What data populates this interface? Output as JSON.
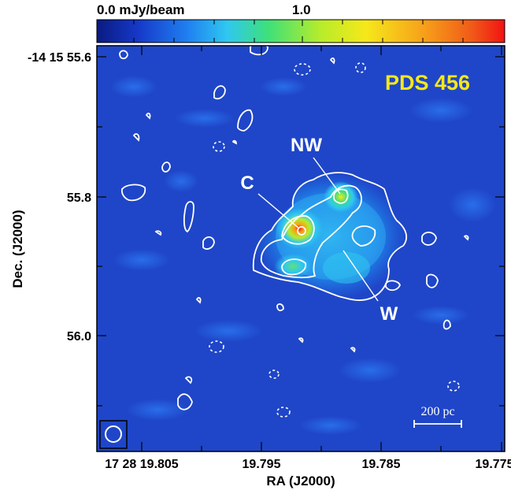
{
  "colorbar": {
    "label_low": "0.0 mJy/beam",
    "label_high": "1.0",
    "colors": [
      "#0a1a80",
      "#1638c8",
      "#1f7ef0",
      "#2fc8f0",
      "#3ee07a",
      "#b8ec2a",
      "#f6e81a",
      "#f7a11a",
      "#f05a18",
      "#f21212"
    ]
  },
  "image": {
    "background_color": "#1f46c8",
    "contour_color": "#ffffff"
  },
  "title": "PDS 456",
  "title_color": "#f6e81a",
  "components": {
    "nw": "NW",
    "c": "C",
    "w": "W"
  },
  "scale_bar": {
    "label": "200 pc"
  },
  "axes": {
    "xlabel": "RA (J2000)",
    "ylabel": "Dec. (J2000)",
    "x_ticks": [
      "17 28 19.805",
      "19.795",
      "19.785",
      "19.775"
    ],
    "y_ticks": [
      "-14 15 55.6",
      "55.8",
      "56.0"
    ]
  }
}
